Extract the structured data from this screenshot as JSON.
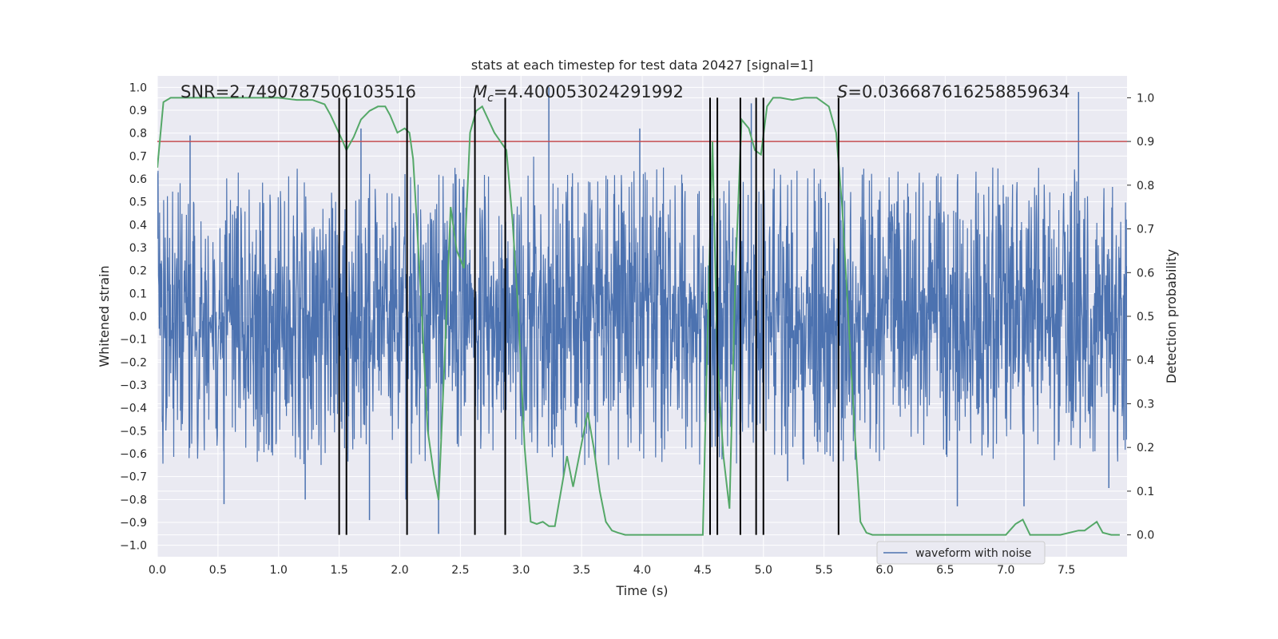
{
  "chart_data": {
    "type": "line",
    "title": "stats at each timestep for test data 20427 [signal=1]",
    "xlabel": "Time (s)",
    "ylabel": "Whitened strain",
    "ylabel_right": "Detection probability",
    "xlim": [
      0.0,
      8.0
    ],
    "ylim": [
      -1.05,
      1.05
    ],
    "ylim_right": [
      -0.05,
      1.05
    ],
    "x_ticks": [
      "0.0",
      "0.5",
      "1.0",
      "1.5",
      "2.0",
      "2.5",
      "3.0",
      "3.5",
      "4.0",
      "4.5",
      "5.0",
      "5.5",
      "6.0",
      "6.5",
      "7.0",
      "7.5"
    ],
    "y_ticks": [
      "−1.0",
      "−0.9",
      "−0.8",
      "−0.7",
      "−0.6",
      "−0.5",
      "−0.4",
      "−0.3",
      "−0.2",
      "−0.1",
      "0.0",
      "0.1",
      "0.2",
      "0.3",
      "0.4",
      "0.5",
      "0.6",
      "0.7",
      "0.8",
      "0.9",
      "1.0"
    ],
    "y_right_ticks": [
      "0.0",
      "0.1",
      "0.2",
      "0.3",
      "0.4",
      "0.5",
      "0.6",
      "0.7",
      "0.8",
      "0.9",
      "1.0"
    ],
    "grid": true,
    "legend_position": "bottom-right",
    "annotations": {
      "snr": "SNR=2.7490787506103516",
      "mc_symbol": "M",
      "mc_sub": "c",
      "mc_value": "=4.400053024291992",
      "s_symbol": "S",
      "s_value": "=0.036687616258859634"
    },
    "colors": {
      "waveform": "#4c72b0",
      "probability": "#55a868",
      "threshold": "#c44e52",
      "vlines": "#000000",
      "background": "#eaeaf2"
    },
    "threshold": 0.9,
    "vlines": [
      1.5,
      1.56,
      2.06,
      2.62,
      2.87,
      4.56,
      4.62,
      4.81,
      4.94,
      5.0,
      5.62
    ],
    "series": [
      {
        "name": "waveform with noise",
        "axis": "left",
        "kind": "noise",
        "typical_amplitude": 0.45,
        "spike_peaks": [
          [
            0.27,
            0.79
          ],
          [
            0.55,
            -0.82
          ],
          [
            1.22,
            -0.8
          ],
          [
            1.68,
            0.82
          ],
          [
            1.75,
            -0.89
          ],
          [
            2.05,
            -0.8
          ],
          [
            2.32,
            -0.95
          ],
          [
            3.23,
            1.0
          ],
          [
            3.35,
            -0.7
          ],
          [
            3.98,
            0.82
          ],
          [
            4.9,
            0.93
          ],
          [
            5.2,
            -0.72
          ],
          [
            6.6,
            -0.83
          ],
          [
            7.15,
            -0.83
          ],
          [
            7.6,
            0.98
          ],
          [
            7.85,
            -0.75
          ]
        ]
      },
      {
        "name": "",
        "axis": "right",
        "kind": "line",
        "x": [
          0.0,
          0.05,
          0.11,
          0.2,
          0.4,
          0.8,
          1.0,
          1.15,
          1.28,
          1.38,
          1.43,
          1.48,
          1.53,
          1.56,
          1.62,
          1.68,
          1.75,
          1.82,
          1.88,
          1.92,
          1.98,
          2.04,
          2.08,
          2.11,
          2.14,
          2.18,
          2.23,
          2.28,
          2.32,
          2.37,
          2.42,
          2.47,
          2.53,
          2.58,
          2.63,
          2.68,
          2.73,
          2.78,
          2.83,
          2.88,
          2.93,
          2.98,
          3.03,
          3.08,
          3.13,
          3.18,
          3.23,
          3.28,
          3.33,
          3.38,
          3.43,
          3.48,
          3.55,
          3.6,
          3.65,
          3.7,
          3.75,
          3.8,
          3.86,
          3.95,
          4.05,
          4.3,
          4.5,
          4.53,
          4.58,
          4.62,
          4.67,
          4.72,
          4.77,
          4.82,
          4.88,
          4.93,
          4.98,
          5.03,
          5.08,
          5.14,
          5.24,
          5.34,
          5.44,
          5.54,
          5.6,
          5.65,
          5.7,
          5.75,
          5.8,
          5.85,
          5.9,
          6.0,
          6.3,
          6.5,
          6.7,
          7.0,
          7.08,
          7.14,
          7.2,
          7.25,
          7.3,
          7.45,
          7.6,
          7.65,
          7.7,
          7.75,
          7.8,
          7.87,
          7.94
        ],
        "y": [
          0.84,
          0.99,
          1.0,
          1.0,
          1.0,
          1.0,
          1.0,
          0.995,
          0.995,
          0.985,
          0.96,
          0.93,
          0.9,
          0.88,
          0.91,
          0.95,
          0.97,
          0.98,
          0.98,
          0.96,
          0.92,
          0.93,
          0.92,
          0.86,
          0.72,
          0.52,
          0.24,
          0.14,
          0.08,
          0.4,
          0.75,
          0.65,
          0.61,
          0.92,
          0.97,
          0.98,
          0.95,
          0.92,
          0.9,
          0.88,
          0.72,
          0.5,
          0.2,
          0.03,
          0.025,
          0.03,
          0.02,
          0.02,
          0.1,
          0.18,
          0.11,
          0.18,
          0.28,
          0.2,
          0.1,
          0.03,
          0.01,
          0.005,
          0.0,
          0.0,
          0.0,
          0.0,
          0.0,
          0.35,
          0.9,
          0.4,
          0.18,
          0.06,
          0.6,
          0.95,
          0.93,
          0.88,
          0.87,
          0.98,
          1.0,
          1.0,
          0.995,
          1.0,
          1.0,
          0.98,
          0.92,
          0.75,
          0.5,
          0.25,
          0.03,
          0.005,
          0.0,
          0.0,
          0.0,
          0.0,
          0.0,
          0.0,
          0.025,
          0.035,
          0.0,
          0.0,
          0.0,
          0.0,
          0.01,
          0.01,
          0.02,
          0.03,
          0.005,
          0.0,
          0.0
        ]
      }
    ]
  }
}
